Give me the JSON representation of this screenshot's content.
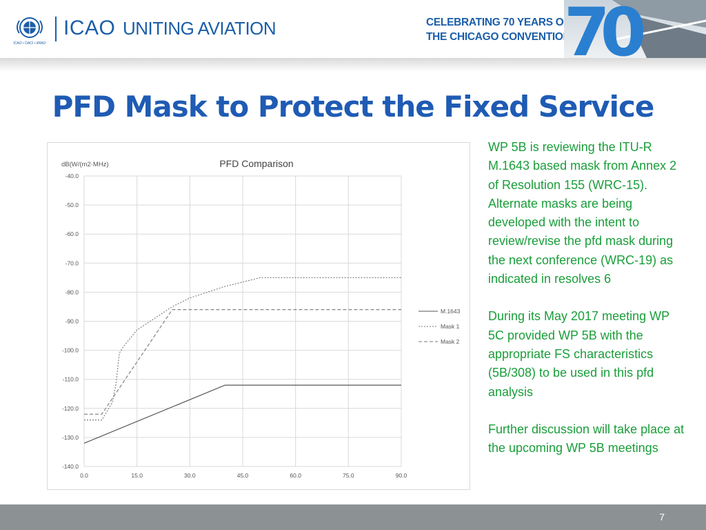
{
  "header": {
    "logo_small_text": "ICAO • OACI • ИКАО",
    "org": "ICAO",
    "tagline": "UNITING AVIATION",
    "celebrating_line1": "CELEBRATING 70 YEARS OF",
    "celebrating_line2": "THE CHICAGO CONVENTION",
    "big_number": "70"
  },
  "title": "PFD Mask to Protect the Fixed Service",
  "side_text": [
    "WP 5B is reviewing the ITU-R M.1643 based mask from Annex 2 of Resolution 155 (WRC-15).  Alternate masks are being developed with the intent to review/revise the pfd mask during the next conference (WRC-19) as indicated in resolves 6",
    "During its May 2017 meeting WP 5C provided WP 5B with the appropriate FS characteristics (5B/308) to be used in this pfd analysis",
    "Further discussion will take place at the upcoming WP 5B meetings"
  ],
  "footer": {
    "page_number": "7"
  },
  "colors": {
    "accent": "#1f5bb4",
    "side_text": "#1a9e3a",
    "footer": "#8c9294"
  },
  "chart_data": {
    "type": "line",
    "title": "PFD Comparison",
    "ylabel": "dB(W/(m2·MHz)",
    "xlabel": "",
    "xlim": [
      0,
      90
    ],
    "ylim": [
      -140,
      -40
    ],
    "x_ticks": [
      "0.0",
      "15.0",
      "30.0",
      "45.0",
      "60.0",
      "75.0",
      "90.0"
    ],
    "y_ticks": [
      "-40.0",
      "-50.0",
      "-60.0",
      "-70.0",
      "-80.0",
      "-90.0",
      "-100.0",
      "-110.0",
      "-120.0",
      "-130.0",
      "-140.0"
    ],
    "grid": true,
    "legend_position": "right",
    "series": [
      {
        "name": "M.1643",
        "style": "solid",
        "color": "#555555",
        "points": [
          [
            0,
            -132
          ],
          [
            40,
            -112
          ],
          [
            90,
            -112
          ]
        ]
      },
      {
        "name": "Mask 1",
        "style": "dotted",
        "color": "#777777",
        "points": [
          [
            0,
            -124
          ],
          [
            5,
            -124
          ],
          [
            6,
            -122
          ],
          [
            8,
            -118
          ],
          [
            9,
            -112
          ],
          [
            10,
            -101
          ],
          [
            11,
            -99
          ],
          [
            13,
            -96
          ],
          [
            15,
            -93
          ],
          [
            20,
            -89
          ],
          [
            25,
            -85
          ],
          [
            30,
            -82
          ],
          [
            35,
            -80
          ],
          [
            40,
            -78
          ],
          [
            45,
            -76.5
          ],
          [
            50,
            -75
          ],
          [
            90,
            -75
          ]
        ]
      },
      {
        "name": "Mask 2",
        "style": "dashed",
        "color": "#777777",
        "points": [
          [
            0,
            -122
          ],
          [
            5,
            -122
          ],
          [
            25,
            -86
          ],
          [
            90,
            -86
          ]
        ]
      }
    ]
  }
}
